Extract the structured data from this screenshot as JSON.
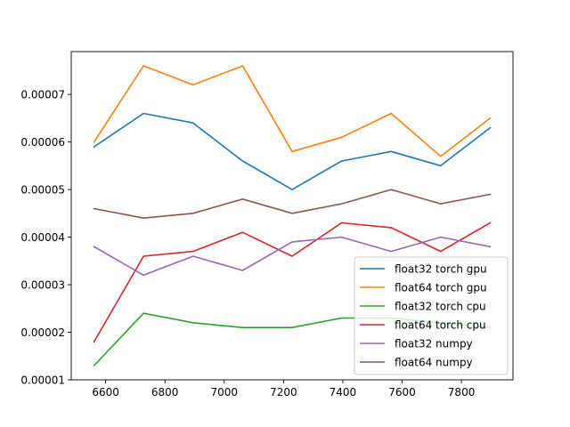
{
  "chart_data": {
    "type": "line",
    "title": "",
    "xlabel": "",
    "ylabel": "",
    "x": [
      6561,
      6728,
      6895,
      7062,
      7229,
      7396,
      7563,
      7730,
      7897
    ],
    "xlim": [
      6484,
      7974
    ],
    "ylim": [
      1e-05,
      7.9e-05
    ],
    "xticks": [
      6600,
      6800,
      7000,
      7200,
      7400,
      7600,
      7800
    ],
    "xtick_labels": [
      "6600",
      "6800",
      "7000",
      "7200",
      "7400",
      "7600",
      "7800"
    ],
    "yticks": [
      1e-05,
      2e-05,
      3e-05,
      4e-05,
      5e-05,
      6e-05,
      7e-05
    ],
    "ytick_labels": [
      "0.00001",
      "0.00002",
      "0.00003",
      "0.00004",
      "0.00005",
      "0.00006",
      "0.00007"
    ],
    "grid": false,
    "legend_position": "lower-right",
    "series": [
      {
        "name": "float32 torch gpu",
        "color": "#1f77b4",
        "values": [
          5.9e-05,
          6.6e-05,
          6.4e-05,
          5.6e-05,
          5e-05,
          5.6e-05,
          5.8e-05,
          5.5e-05,
          6.3e-05
        ]
      },
      {
        "name": "float64 torch gpu",
        "color": "#ff7f0e",
        "values": [
          6e-05,
          7.6e-05,
          7.2e-05,
          7.6e-05,
          5.8e-05,
          6.1e-05,
          6.6e-05,
          5.7e-05,
          6.5e-05
        ]
      },
      {
        "name": "float32 torch cpu",
        "color": "#2ca02c",
        "values": [
          1.3e-05,
          2.4e-05,
          2.2e-05,
          2.1e-05,
          2.1e-05,
          2.3e-05,
          2.3e-05,
          2.2e-05,
          2.1e-05
        ]
      },
      {
        "name": "float64 torch cpu",
        "color": "#d62728",
        "values": [
          1.8e-05,
          3.6e-05,
          3.7e-05,
          4.1e-05,
          3.6e-05,
          4.3e-05,
          4.2e-05,
          3.7e-05,
          4.3e-05
        ]
      },
      {
        "name": "float32 numpy",
        "color": "#9467bd",
        "values": [
          3.8e-05,
          3.2e-05,
          3.6e-05,
          3.3e-05,
          3.9e-05,
          4e-05,
          3.7e-05,
          4e-05,
          3.8e-05
        ]
      },
      {
        "name": "float64 numpy",
        "color": "#8c564b",
        "values": [
          4.6e-05,
          4.4e-05,
          4.5e-05,
          4.8e-05,
          4.5e-05,
          4.7e-05,
          5e-05,
          4.7e-05,
          4.9e-05
        ]
      }
    ]
  }
}
